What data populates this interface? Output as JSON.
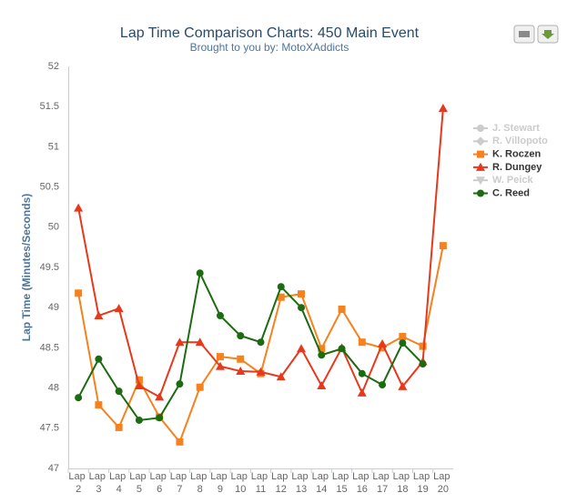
{
  "chart_data": {
    "type": "line",
    "title": "Lap Time Comparison Charts: 450 Main Event",
    "subtitle": "Brought to you by:  MotoXAddicts",
    "y_label": "Lap Time (Minutes/Seconds)",
    "categories": [
      "Lap 2",
      "Lap 3",
      "Lap 4",
      "Lap 5",
      "Lap 6",
      "Lap 7",
      "Lap 8",
      "Lap 9",
      "Lap 10",
      "Lap 11",
      "Lap 12",
      "Lap 13",
      "Lap 14",
      "Lap 15",
      "Lap 16",
      "Lap 17",
      "Lap 18",
      "Lap 19",
      "Lap 20"
    ],
    "ylim": [
      47,
      52
    ],
    "yticks": [
      47,
      47.5,
      48,
      48.5,
      49,
      49.5,
      50,
      50.5,
      51,
      51.5,
      52
    ],
    "grid": false,
    "legend": "right",
    "series": [
      {
        "name": "J. Stewart",
        "color": "#cccccc",
        "marker": "circle",
        "visible": false,
        "values": [
          null,
          null,
          null,
          null,
          null,
          null,
          null,
          null,
          null,
          null,
          null,
          null,
          null,
          null,
          null,
          null,
          null,
          null,
          null
        ]
      },
      {
        "name": "R. Villopoto",
        "color": "#cccccc",
        "marker": "diamond",
        "visible": false,
        "values": [
          null,
          null,
          null,
          null,
          null,
          null,
          null,
          null,
          null,
          null,
          null,
          null,
          null,
          null,
          null,
          null,
          null,
          null,
          null
        ]
      },
      {
        "name": "K. Roczen",
        "color": "#f5821f",
        "marker": "square",
        "visible": true,
        "values": [
          49.18,
          47.79,
          47.51,
          48.1,
          47.64,
          47.33,
          48.01,
          48.39,
          48.36,
          48.18,
          49.13,
          49.17,
          48.49,
          48.98,
          48.57,
          48.5,
          48.64,
          48.52,
          49.77
        ]
      },
      {
        "name": "R. Dungey",
        "color": "#e8381c",
        "marker": "triangle",
        "visible": true,
        "values": [
          50.24,
          48.9,
          48.99,
          48.03,
          47.89,
          48.57,
          48.57,
          48.27,
          48.21,
          48.2,
          48.14,
          48.49,
          48.03,
          48.5,
          47.94,
          48.55,
          48.02,
          48.33,
          51.48
        ]
      },
      {
        "name": "W. Peick",
        "color": "#cccccc",
        "marker": "triangle-down",
        "visible": false,
        "values": [
          null,
          null,
          null,
          null,
          null,
          null,
          null,
          null,
          null,
          null,
          null,
          null,
          null,
          null,
          null,
          null,
          null,
          null,
          null
        ]
      },
      {
        "name": "C. Reed",
        "color": "#1b6b10",
        "marker": "circle",
        "visible": true,
        "values": [
          47.88,
          48.36,
          47.96,
          47.6,
          47.63,
          48.05,
          49.43,
          48.9,
          48.65,
          48.57,
          49.26,
          49.0,
          48.41,
          48.49,
          48.18,
          48.04,
          48.56,
          48.3,
          null
        ]
      }
    ]
  }
}
